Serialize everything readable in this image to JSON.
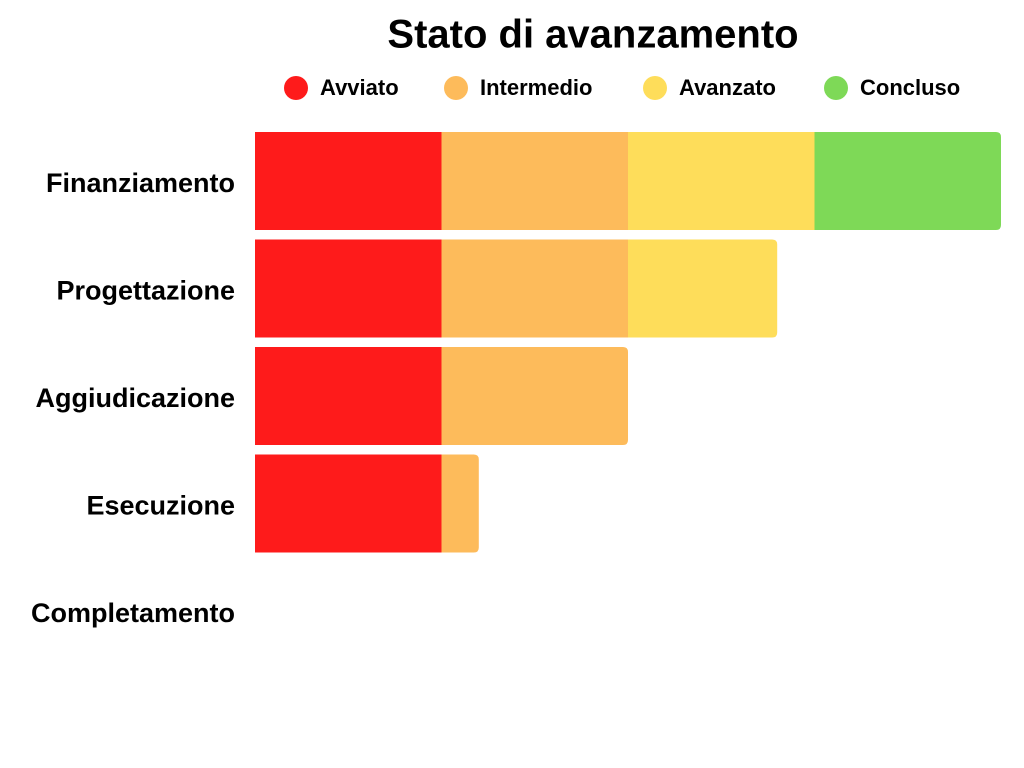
{
  "chart_data": {
    "type": "stacked-bar-horizontal",
    "title": "Stato di avanzamento",
    "categories": [
      "Finanziamento",
      "Progettazione",
      "Aggiudicazione",
      "Esecuzione",
      "Completamento"
    ],
    "series": [
      {
        "name": "Avviato",
        "color": "#fe1b1b",
        "values": [
          1,
          1,
          1,
          1,
          0
        ]
      },
      {
        "name": "Intermedio",
        "color": "#fdbb5b",
        "values": [
          1,
          1,
          1,
          0.2,
          0
        ]
      },
      {
        "name": "Avanzato",
        "color": "#fedd5a",
        "values": [
          1,
          0.8,
          0,
          0,
          0
        ]
      },
      {
        "name": "Concluso",
        "color": "#7ed957",
        "values": [
          1,
          0,
          0,
          0,
          0
        ]
      }
    ]
  }
}
